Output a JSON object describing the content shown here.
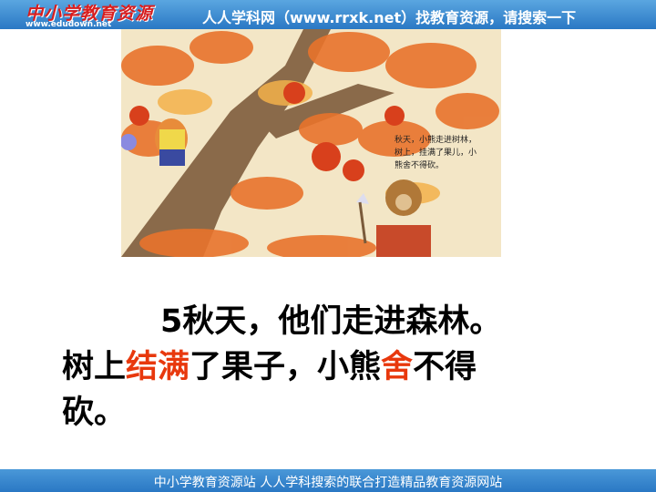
{
  "header": {
    "logo": "中小学教育资源",
    "logo_url": "www.edudown.net",
    "banner": "人人学科网（www.rrxk.net）找教育资源，请搜索一下"
  },
  "illustration": {
    "caption_lines": [
      "秋天，小熊走进树林，",
      "树上，挂满了果儿，小",
      "熊舍不得砍。"
    ]
  },
  "body": {
    "lines": [
      [
        {
          "text": "5秋天，他们走进森林。",
          "color": "#000000"
        }
      ],
      [
        {
          "text": "树上",
          "color": "#000000"
        },
        {
          "text": "结满",
          "color": "#e8380d"
        },
        {
          "text": "了果子，小熊",
          "color": "#000000"
        },
        {
          "text": "舍",
          "color": "#e8380d"
        },
        {
          "text": "不得",
          "color": "#000000"
        }
      ],
      [
        {
          "text": "砍。",
          "color": "#000000"
        }
      ]
    ]
  },
  "footer": {
    "text": "中小学教育资源站 人人学科搜索的联合打造精品教育资源网站"
  }
}
